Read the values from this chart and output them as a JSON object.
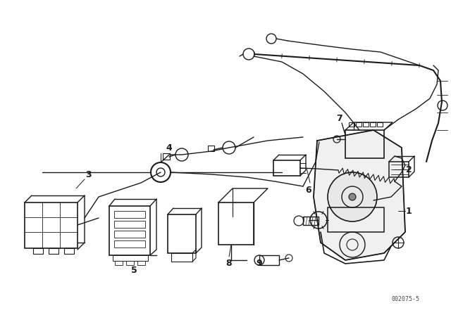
{
  "bg_color": "#ffffff",
  "line_color": "#1a1a1a",
  "fig_width": 6.4,
  "fig_height": 4.48,
  "dpi": 100,
  "part_number": "002075-5",
  "border_color": "#cccccc"
}
